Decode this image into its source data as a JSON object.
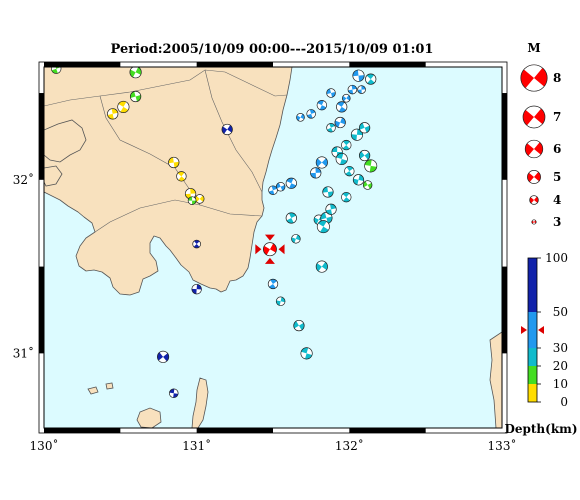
{
  "title": "Period:2005/10/09 00:00---2015/10/09 01:01",
  "map": {
    "lon_range": [
      130,
      133
    ],
    "lat_range": [
      30.57,
      32.65
    ],
    "lon_ticks": [
      {
        "value": 130,
        "label": "130˚"
      },
      {
        "value": 131,
        "label": "131˚"
      },
      {
        "value": 132,
        "label": "132˚"
      },
      {
        "value": 133,
        "label": "133˚"
      }
    ],
    "lat_ticks": [
      {
        "value": 31,
        "label": "31˚"
      },
      {
        "value": 32,
        "label": "32˚"
      }
    ],
    "colors": {
      "sea": "#dcfbff",
      "land": "#f8e1be",
      "coast": "#555555",
      "frame": "#000000"
    },
    "target": {
      "lon": 131.48,
      "lat": 31.6,
      "mag": 5.0,
      "color": "#ff0000"
    },
    "events": [
      {
        "lon": 130.08,
        "lat": 32.64,
        "mag": 4.2,
        "color": "#44dd22"
      },
      {
        "lon": 130.6,
        "lat": 32.62,
        "mag": 4.6,
        "color": "#44dd22"
      },
      {
        "lon": 130.6,
        "lat": 32.48,
        "mag": 4.4,
        "color": "#44dd22"
      },
      {
        "lon": 130.52,
        "lat": 32.42,
        "mag": 4.6,
        "color": "#ffdd00"
      },
      {
        "lon": 130.45,
        "lat": 32.38,
        "mag": 4.4,
        "color": "#ffdd00"
      },
      {
        "lon": 131.2,
        "lat": 32.29,
        "mag": 4.4,
        "color": "#1122aa"
      },
      {
        "lon": 130.85,
        "lat": 32.1,
        "mag": 4.4,
        "color": "#ffdd00"
      },
      {
        "lon": 130.9,
        "lat": 32.02,
        "mag": 4.2,
        "color": "#ffdd00"
      },
      {
        "lon": 130.96,
        "lat": 31.92,
        "mag": 4.4,
        "color": "#ffdd00"
      },
      {
        "lon": 131.02,
        "lat": 31.89,
        "mag": 4.0,
        "color": "#ffdd00"
      },
      {
        "lon": 130.97,
        "lat": 31.88,
        "mag": 3.8,
        "color": "#44dd22"
      },
      {
        "lon": 131.0,
        "lat": 31.63,
        "mag": 3.8,
        "color": "#1122aa"
      },
      {
        "lon": 131.0,
        "lat": 31.37,
        "mag": 4.2,
        "color": "#1122aa"
      },
      {
        "lon": 130.78,
        "lat": 30.98,
        "mag": 4.6,
        "color": "#1122aa"
      },
      {
        "lon": 130.85,
        "lat": 30.77,
        "mag": 4.0,
        "color": "#1122aa"
      },
      {
        "lon": 131.5,
        "lat": 31.4,
        "mag": 4.2,
        "color": "#2299ee"
      },
      {
        "lon": 131.55,
        "lat": 31.3,
        "mag": 4.0,
        "color": "#11bbcc"
      },
      {
        "lon": 131.67,
        "lat": 31.16,
        "mag": 4.4,
        "color": "#11bbcc"
      },
      {
        "lon": 131.72,
        "lat": 31.0,
        "mag": 4.6,
        "color": "#11bbcc"
      },
      {
        "lon": 131.62,
        "lat": 31.78,
        "mag": 4.4,
        "color": "#11bbcc"
      },
      {
        "lon": 131.65,
        "lat": 31.66,
        "mag": 4.0,
        "color": "#11bbcc"
      },
      {
        "lon": 131.55,
        "lat": 31.96,
        "mag": 4.0,
        "color": "#2299ee"
      },
      {
        "lon": 131.62,
        "lat": 31.98,
        "mag": 4.4,
        "color": "#2299ee"
      },
      {
        "lon": 131.5,
        "lat": 31.94,
        "mag": 4.0,
        "color": "#2299ee"
      },
      {
        "lon": 131.8,
        "lat": 31.77,
        "mag": 4.2,
        "color": "#11bbcc"
      },
      {
        "lon": 131.85,
        "lat": 31.78,
        "mag": 4.6,
        "color": "#11bbcc"
      },
      {
        "lon": 131.83,
        "lat": 31.73,
        "mag": 4.8,
        "color": "#11bbcc"
      },
      {
        "lon": 131.88,
        "lat": 31.83,
        "mag": 4.4,
        "color": "#11bbcc"
      },
      {
        "lon": 131.82,
        "lat": 31.5,
        "mag": 4.6,
        "color": "#11bbcc"
      },
      {
        "lon": 131.86,
        "lat": 31.93,
        "mag": 4.4,
        "color": "#11bbcc"
      },
      {
        "lon": 131.98,
        "lat": 31.9,
        "mag": 4.2,
        "color": "#11bbcc"
      },
      {
        "lon": 131.78,
        "lat": 32.04,
        "mag": 4.4,
        "color": "#2299ee"
      },
      {
        "lon": 131.82,
        "lat": 32.1,
        "mag": 4.6,
        "color": "#2299ee"
      },
      {
        "lon": 131.92,
        "lat": 32.16,
        "mag": 4.4,
        "color": "#11bbcc"
      },
      {
        "lon": 131.98,
        "lat": 32.2,
        "mag": 4.2,
        "color": "#11bbcc"
      },
      {
        "lon": 132.05,
        "lat": 32.26,
        "mag": 4.6,
        "color": "#11bbcc"
      },
      {
        "lon": 132.1,
        "lat": 32.14,
        "mag": 4.4,
        "color": "#11bbcc"
      },
      {
        "lon": 132.14,
        "lat": 32.08,
        "mag": 4.8,
        "color": "#44dd22"
      },
      {
        "lon": 132.0,
        "lat": 32.05,
        "mag": 4.2,
        "color": "#11bbcc"
      },
      {
        "lon": 132.06,
        "lat": 32.0,
        "mag": 4.4,
        "color": "#11bbcc"
      },
      {
        "lon": 132.12,
        "lat": 31.97,
        "mag": 4.0,
        "color": "#44dd22"
      },
      {
        "lon": 131.95,
        "lat": 32.12,
        "mag": 4.6,
        "color": "#11bbcc"
      },
      {
        "lon": 131.88,
        "lat": 32.3,
        "mag": 4.0,
        "color": "#11bbcc"
      },
      {
        "lon": 131.94,
        "lat": 32.33,
        "mag": 4.4,
        "color": "#2299ee"
      },
      {
        "lon": 132.1,
        "lat": 32.3,
        "mag": 4.4,
        "color": "#11bbcc"
      },
      {
        "lon": 131.82,
        "lat": 32.43,
        "mag": 4.2,
        "color": "#2299ee"
      },
      {
        "lon": 131.75,
        "lat": 32.38,
        "mag": 4.0,
        "color": "#2299ee"
      },
      {
        "lon": 131.68,
        "lat": 32.36,
        "mag": 3.8,
        "color": "#2299ee"
      },
      {
        "lon": 131.88,
        "lat": 32.5,
        "mag": 4.0,
        "color": "#2299ee"
      },
      {
        "lon": 131.95,
        "lat": 32.42,
        "mag": 4.4,
        "color": "#2299ee"
      },
      {
        "lon": 132.02,
        "lat": 32.52,
        "mag": 4.0,
        "color": "#2299ee"
      },
      {
        "lon": 131.98,
        "lat": 32.47,
        "mag": 3.8,
        "color": "#2299ee"
      },
      {
        "lon": 132.06,
        "lat": 32.6,
        "mag": 4.6,
        "color": "#2299ee"
      },
      {
        "lon": 132.14,
        "lat": 32.58,
        "mag": 4.4,
        "color": "#11bbcc"
      },
      {
        "lon": 132.08,
        "lat": 32.52,
        "mag": 3.8,
        "color": "#2299ee"
      }
    ]
  },
  "legend": {
    "header": "M",
    "magnitudes": [
      {
        "mag": 8,
        "label": "8"
      },
      {
        "mag": 7,
        "label": "7"
      },
      {
        "mag": 6,
        "label": "6"
      },
      {
        "mag": 5,
        "label": "5"
      },
      {
        "mag": 4,
        "label": "4"
      },
      {
        "mag": 3,
        "label": "3"
      }
    ]
  },
  "depth_scale": {
    "title": "Depth(km)",
    "ticks": [
      {
        "value": 0,
        "label": "0"
      },
      {
        "value": 10,
        "label": "10"
      },
      {
        "value": 20,
        "label": "20"
      },
      {
        "value": 30,
        "label": "30"
      },
      {
        "value": 50,
        "label": "50"
      },
      {
        "value": 100,
        "label": "100"
      }
    ],
    "bands": [
      {
        "from": 0,
        "to": 10,
        "color": "#ffdd00"
      },
      {
        "from": 10,
        "to": 20,
        "color": "#44dd22"
      },
      {
        "from": 20,
        "to": 30,
        "color": "#11bbcc"
      },
      {
        "from": 30,
        "to": 50,
        "color": "#2299ee"
      },
      {
        "from": 50,
        "to": 100,
        "color": "#1122aa"
      }
    ],
    "marker_depth": 40
  }
}
